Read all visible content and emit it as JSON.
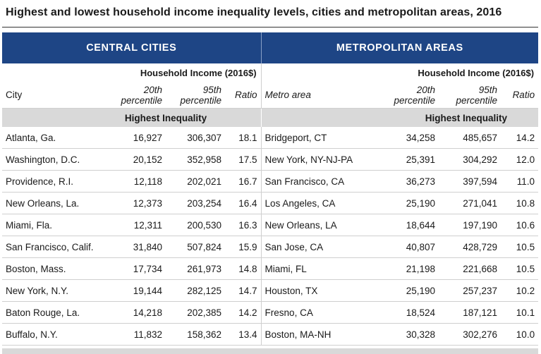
{
  "title": "Highest and lowest household income inequality levels, cities and metropolitan areas, 2016",
  "colors": {
    "banner": "#1e4585",
    "section_band": "#d9d9d9"
  },
  "left": {
    "banner": "CENTRAL CITIES",
    "income_header": "Household Income (2016$)",
    "col_name": "City",
    "col_p20": [
      "20th",
      "percentile"
    ],
    "col_p95": [
      "95th",
      "percentile"
    ],
    "col_ratio": "Ratio",
    "section": "Highest Inequality",
    "rows": [
      {
        "name": "Atlanta, Ga.",
        "p20": "16,927",
        "p95": "306,307",
        "ratio": "18.1"
      },
      {
        "name": "Washington, D.C.",
        "p20": "20,152",
        "p95": "352,958",
        "ratio": "17.5"
      },
      {
        "name": "Providence, R.I.",
        "p20": "12,118",
        "p95": "202,021",
        "ratio": "16.7"
      },
      {
        "name": "New Orleans, La.",
        "p20": "12,373",
        "p95": "203,254",
        "ratio": "16.4"
      },
      {
        "name": "Miami, Fla.",
        "p20": "12,311",
        "p95": "200,530",
        "ratio": "16.3"
      },
      {
        "name": "San Francisco, Calif.",
        "p20": "31,840",
        "p95": "507,824",
        "ratio": "15.9"
      },
      {
        "name": "Boston, Mass.",
        "p20": "17,734",
        "p95": "261,973",
        "ratio": "14.8"
      },
      {
        "name": "New York, N.Y.",
        "p20": "19,144",
        "p95": "282,125",
        "ratio": "14.7"
      },
      {
        "name": "Baton Rouge, La.",
        "p20": "14,218",
        "p95": "202,385",
        "ratio": "14.2"
      },
      {
        "name": "Buffalo, N.Y.",
        "p20": "11,832",
        "p95": "158,362",
        "ratio": "13.4"
      }
    ]
  },
  "right": {
    "banner": "METROPOLITAN AREAS",
    "income_header": "Household Income (2016$)",
    "col_name": "Metro area",
    "col_p20": [
      "20th",
      "percentile"
    ],
    "col_p95": [
      "95th",
      "percentile"
    ],
    "col_ratio": "Ratio",
    "section": "Highest Inequality",
    "rows": [
      {
        "name": "Bridgeport, CT",
        "p20": "34,258",
        "p95": "485,657",
        "ratio": "14.2"
      },
      {
        "name": "New York, NY-NJ-PA",
        "p20": "25,391",
        "p95": "304,292",
        "ratio": "12.0"
      },
      {
        "name": "San Francisco, CA",
        "p20": "36,273",
        "p95": "397,594",
        "ratio": "11.0"
      },
      {
        "name": "Los Angeles, CA",
        "p20": "25,190",
        "p95": "271,041",
        "ratio": "10.8"
      },
      {
        "name": "New Orleans, LA",
        "p20": "18,644",
        "p95": "197,190",
        "ratio": "10.6"
      },
      {
        "name": "San Jose, CA",
        "p20": "40,807",
        "p95": "428,729",
        "ratio": "10.5"
      },
      {
        "name": "Miami, FL",
        "p20": "21,198",
        "p95": "221,668",
        "ratio": "10.5"
      },
      {
        "name": "Houston, TX",
        "p20": "25,190",
        "p95": "257,237",
        "ratio": "10.2"
      },
      {
        "name": "Fresno, CA",
        "p20": "18,524",
        "p95": "187,121",
        "ratio": "10.1"
      },
      {
        "name": "Boston, MA-NH",
        "p20": "30,328",
        "p95": "302,276",
        "ratio": "10.0"
      }
    ]
  }
}
